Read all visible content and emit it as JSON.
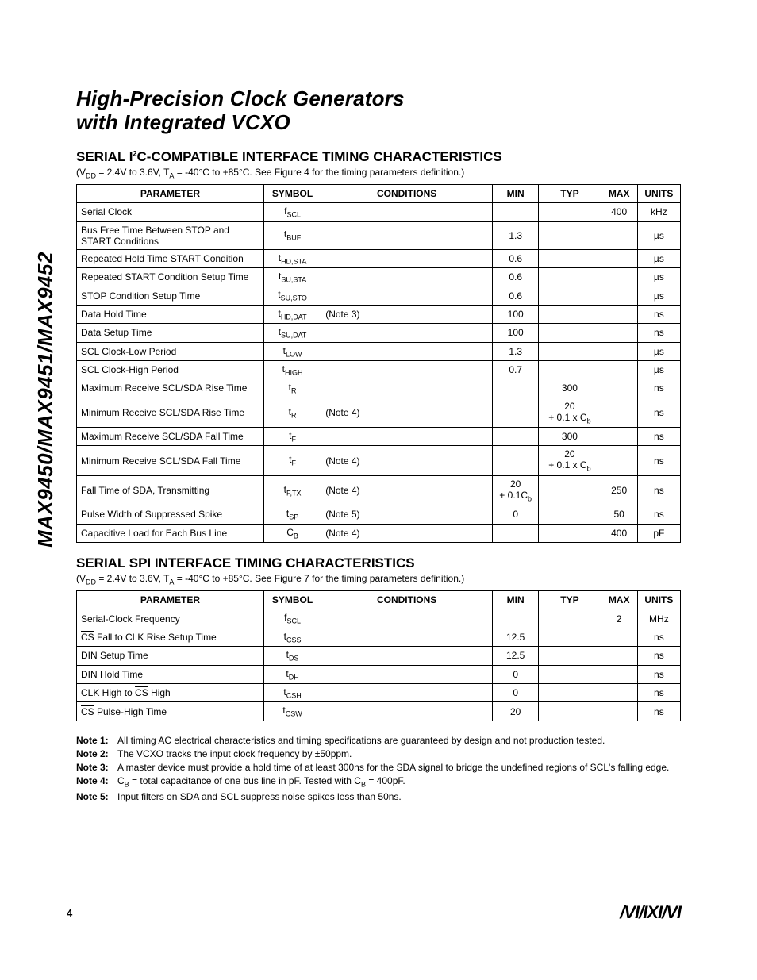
{
  "side_label": "MAX9450/MAX9451/MAX9452",
  "title_line1": "High-Precision Clock Generators",
  "title_line2": "with Integrated VCXO",
  "section1": {
    "heading": "SERIAL I²C-COMPATIBLE INTERFACE TIMING CHARACTERISTICS",
    "cond_prefix": "(V",
    "cond_dd": "DD",
    "cond_mid1": " = 2.4V to 3.6V, T",
    "cond_a": "A",
    "cond_rest": " = -40°C to +85°C. See Figure 4 for the timing parameters definition.)",
    "headers": [
      "PARAMETER",
      "SYMBOL",
      "CONDITIONS",
      "MIN",
      "TYP",
      "MAX",
      "UNITS"
    ],
    "rows": [
      {
        "param": "Serial Clock",
        "sym_pre": "f",
        "sym_sub": "SCL",
        "cond": "",
        "min": "",
        "typ": "",
        "max": "400",
        "units": "kHz"
      },
      {
        "param": "Bus Free Time Between STOP and START Conditions",
        "sym_pre": "t",
        "sym_sub": "BUF",
        "cond": "",
        "min": "1.3",
        "typ": "",
        "max": "",
        "units": "µs"
      },
      {
        "param": "Repeated Hold Time START Condition",
        "sym_pre": "t",
        "sym_sub": "HD,STA",
        "cond": "",
        "min": "0.6",
        "typ": "",
        "max": "",
        "units": "µs"
      },
      {
        "param": "Repeated START Condition Setup Time",
        "sym_pre": "t",
        "sym_sub": "SU,STA",
        "cond": "",
        "min": "0.6",
        "typ": "",
        "max": "",
        "units": "µs"
      },
      {
        "param": "STOP Condition Setup Time",
        "sym_pre": "t",
        "sym_sub": "SU,STO",
        "cond": "",
        "min": "0.6",
        "typ": "",
        "max": "",
        "units": "µs"
      },
      {
        "param": "Data Hold Time",
        "sym_pre": "t",
        "sym_sub": "HD,DAT",
        "cond": "(Note 3)",
        "min": "100",
        "typ": "",
        "max": "",
        "units": "ns"
      },
      {
        "param": "Data Setup Time",
        "sym_pre": "t",
        "sym_sub": "SU,DAT",
        "cond": "",
        "min": "100",
        "typ": "",
        "max": "",
        "units": "ns"
      },
      {
        "param": "SCL Clock-Low Period",
        "sym_pre": "t",
        "sym_sub": "LOW",
        "cond": "",
        "min": "1.3",
        "typ": "",
        "max": "",
        "units": "µs"
      },
      {
        "param": "SCL Clock-High Period",
        "sym_pre": "t",
        "sym_sub": "HIGH",
        "cond": "",
        "min": "0.7",
        "typ": "",
        "max": "",
        "units": "µs"
      },
      {
        "param": "Maximum Receive SCL/SDA Rise Time",
        "sym_pre": "t",
        "sym_sub": "R",
        "cond": "",
        "min": "",
        "typ": "300",
        "max": "",
        "units": "ns"
      },
      {
        "param": "Minimum Receive SCL/SDA Rise Time",
        "sym_pre": "t",
        "sym_sub": "R",
        "cond": "(Note 4)",
        "min": "",
        "typ_html": "20<br>+ 0.1 x C<span class=\"sub\">b</span>",
        "max": "",
        "units": "ns"
      },
      {
        "param": "Maximum Receive SCL/SDA Fall Time",
        "sym_pre": "t",
        "sym_sub": "F",
        "cond": "",
        "min": "",
        "typ": "300",
        "max": "",
        "units": "ns"
      },
      {
        "param": "Minimum Receive SCL/SDA Fall Time",
        "sym_pre": "t",
        "sym_sub": "F",
        "cond": "(Note 4)",
        "min": "",
        "typ_html": "20<br>+ 0.1 x C<span class=\"sub\">b</span>",
        "max": "",
        "units": "ns"
      },
      {
        "param": "Fall Time of SDA, Transmitting",
        "sym_pre": "t",
        "sym_sub": "F,TX",
        "cond": "(Note 4)",
        "min_html": "20<br>+ 0.1C<span class=\"sub\">b</span>",
        "typ": "",
        "max": "250",
        "units": "ns"
      },
      {
        "param": "Pulse Width of Suppressed Spike",
        "sym_pre": "t",
        "sym_sub": "SP",
        "cond": "(Note 5)",
        "min": "0",
        "typ": "",
        "max": "50",
        "units": "ns"
      },
      {
        "param": "Capacitive Load for Each Bus Line",
        "sym_pre": "C",
        "sym_sub": "B",
        "cond": "(Note 4)",
        "min": "",
        "typ": "",
        "max": "400",
        "units": "pF"
      }
    ]
  },
  "section2": {
    "heading": "SERIAL SPI INTERFACE TIMING CHARACTERISTICS",
    "cond_prefix": "(V",
    "cond_dd": "DD",
    "cond_mid1": " = 2.4V to 3.6V, T",
    "cond_a": "A",
    "cond_rest": " = -40°C to +85°C. See Figure 7 for the timing parameters definition.)",
    "headers": [
      "PARAMETER",
      "SYMBOL",
      "CONDITIONS",
      "MIN",
      "TYP",
      "MAX",
      "UNITS"
    ],
    "rows": [
      {
        "param": "Serial-Clock Frequency",
        "sym_pre": "f",
        "sym_sub": "SCL",
        "cond": "",
        "min": "",
        "typ": "",
        "max": "2",
        "units": "MHz"
      },
      {
        "param_html": "<span class=\"overline\">CS</span> Fall to CLK Rise Setup Time",
        "sym_pre": "t",
        "sym_sub": "CSS",
        "cond": "",
        "min": "12.5",
        "typ": "",
        "max": "",
        "units": "ns"
      },
      {
        "param": "DIN Setup Time",
        "sym_pre": "t",
        "sym_sub": "DS",
        "cond": "",
        "min": "12.5",
        "typ": "",
        "max": "",
        "units": "ns"
      },
      {
        "param": "DIN Hold Time",
        "sym_pre": "t",
        "sym_sub": "DH",
        "cond": "",
        "min": "0",
        "typ": "",
        "max": "",
        "units": "ns"
      },
      {
        "param_html": "CLK High to <span class=\"overline\">CS</span> High",
        "sym_pre": "t",
        "sym_sub": "CSH",
        "cond": "",
        "min": "0",
        "typ": "",
        "max": "",
        "units": "ns"
      },
      {
        "param_html": "<span class=\"overline\">CS</span> Pulse-High Time",
        "sym_pre": "t",
        "sym_sub": "CSW",
        "cond": "",
        "min": "20",
        "typ": "",
        "max": "",
        "units": "ns"
      }
    ]
  },
  "notes": [
    {
      "label": "Note 1:",
      "text": " All timing AC electrical characteristics and timing specifications are guaranteed by design and not production tested."
    },
    {
      "label": "Note 2:",
      "text": " The VCXO tracks the input clock frequency by ±50ppm."
    },
    {
      "label": "Note 3:",
      "text": " A master device must provide a hold time of at least 300ns for the SDA signal to bridge the undefined regions of SCL's falling edge."
    },
    {
      "label": "Note 4:",
      "text_html": " C<span class=\"sub\">B</span> = total capacitance of one bus line in pF. Tested with C<span class=\"sub\">B</span> = 400pF."
    },
    {
      "label": "Note 5:",
      "text": " Input filters on SDA and SCL suppress noise spikes less than 50ns."
    }
  ],
  "footer": {
    "page": "4",
    "logo_text": "MAXIM"
  }
}
